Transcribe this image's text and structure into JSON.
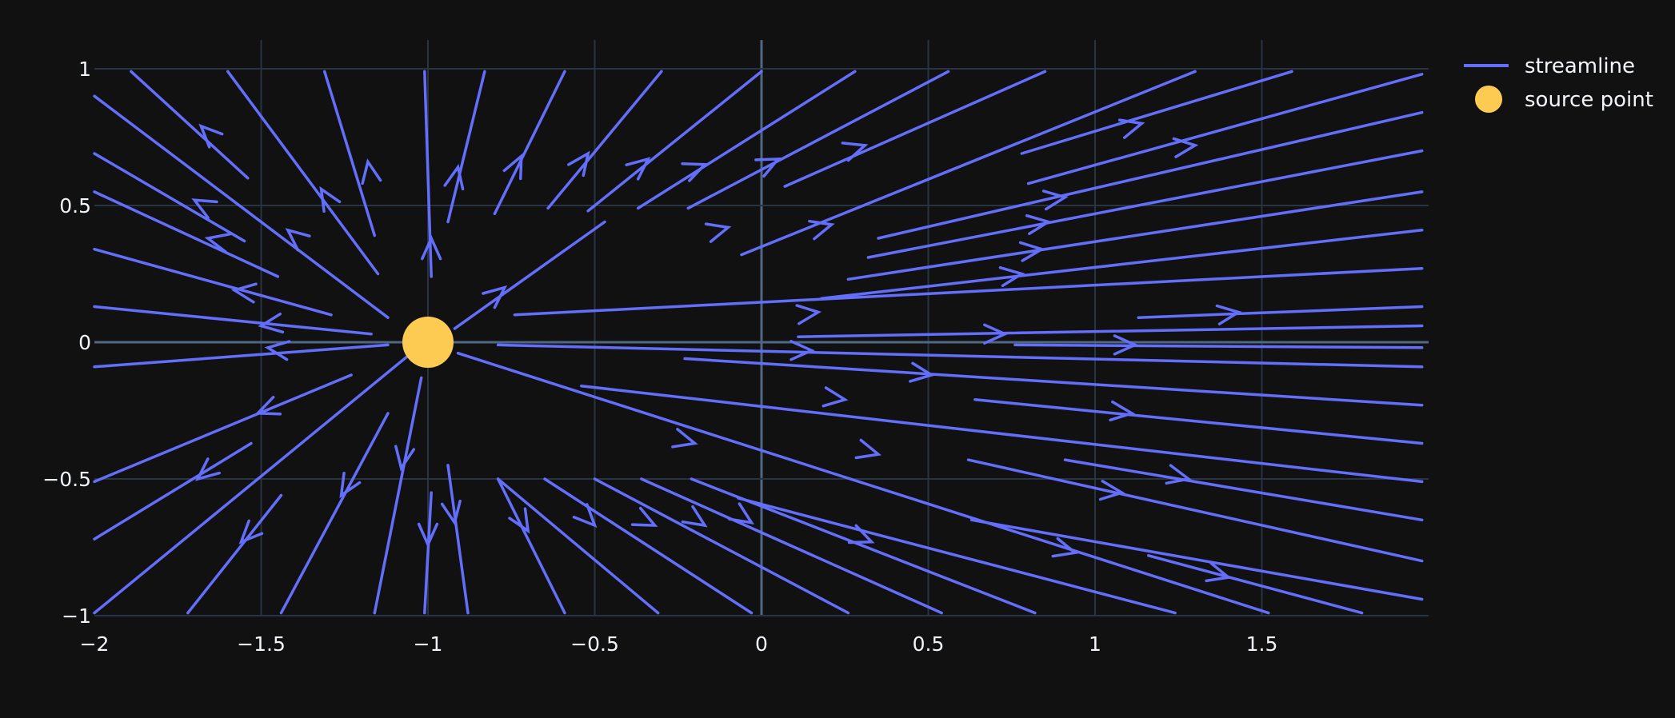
{
  "colors": {
    "background": "#111111",
    "grid": "#283442",
    "zeroline": "#506784",
    "streamline": "#636efa",
    "source": "#fecb52",
    "text": "#f2f5fa"
  },
  "chart_data": {
    "type": "streamline",
    "title": "",
    "xlabel": "",
    "ylabel": "",
    "xlim": [
      -2,
      2
    ],
    "ylim": [
      -1,
      1
    ],
    "xticks": [
      -2,
      -1.5,
      -1,
      -0.5,
      0,
      0.5,
      1,
      1.5
    ],
    "yticks": [
      -1,
      -0.5,
      0,
      0.5,
      1
    ],
    "x_tick_labels": [
      "−2",
      "−1.5",
      "−1",
      "−0.5",
      "0",
      "0.5",
      "1",
      "1.5"
    ],
    "y_tick_labels": [
      "−1",
      "−0.5",
      "0",
      "0.5",
      "1"
    ],
    "grid": true,
    "legend": {
      "position": "top-right",
      "entries": [
        {
          "name": "streamline",
          "marker": "line"
        },
        {
          "name": "source point",
          "marker": "circle"
        }
      ]
    },
    "source_point": {
      "x": -1,
      "y": 0
    },
    "streamlines": [
      [
        [
          -1.89,
          0.99
        ],
        [
          -1.54,
          0.6
        ]
      ],
      [
        [
          -1.6,
          0.99
        ],
        [
          -1.15,
          0.25
        ]
      ],
      [
        [
          -1.31,
          0.99
        ],
        [
          -1.16,
          0.39
        ]
      ],
      [
        [
          -1.01,
          0.99
        ],
        [
          -0.99,
          0.24
        ]
      ],
      [
        [
          -0.83,
          0.99
        ],
        [
          -0.94,
          0.44
        ]
      ],
      [
        [
          -0.59,
          0.99
        ],
        [
          -0.8,
          0.47
        ]
      ],
      [
        [
          -0.3,
          0.99
        ],
        [
          -0.64,
          0.49
        ]
      ],
      [
        [
          -0.0,
          0.99
        ],
        [
          -0.52,
          0.48
        ]
      ],
      [
        [
          0.28,
          0.99
        ],
        [
          -0.37,
          0.49
        ]
      ],
      [
        [
          0.56,
          0.99
        ],
        [
          -0.22,
          0.49
        ]
      ],
      [
        [
          0.85,
          0.99
        ],
        [
          0.07,
          0.57
        ]
      ],
      [
        [
          1.3,
          0.99
        ],
        [
          -0.06,
          0.32
        ]
      ],
      [
        [
          1.59,
          0.99
        ],
        [
          0.78,
          0.69
        ]
      ],
      [
        [
          1.98,
          0.98
        ],
        [
          0.8,
          0.58
        ]
      ],
      [
        [
          1.98,
          0.84
        ],
        [
          0.35,
          0.38
        ]
      ],
      [
        [
          1.98,
          0.7
        ],
        [
          0.32,
          0.31
        ]
      ],
      [
        [
          1.98,
          0.55
        ],
        [
          0.26,
          0.23
        ]
      ],
      [
        [
          1.98,
          0.41
        ],
        [
          0.18,
          0.16
        ]
      ],
      [
        [
          1.98,
          0.27
        ],
        [
          -0.74,
          0.1
        ]
      ],
      [
        [
          1.98,
          0.13
        ],
        [
          1.13,
          0.09
        ]
      ],
      [
        [
          1.98,
          0.06
        ],
        [
          0.11,
          0.02
        ]
      ],
      [
        [
          1.98,
          -0.02
        ],
        [
          0.76,
          -0.01
        ]
      ],
      [
        [
          1.98,
          -0.09
        ],
        [
          -0.79,
          -0.01
        ]
      ],
      [
        [
          1.98,
          -0.23
        ],
        [
          -0.23,
          -0.06
        ]
      ],
      [
        [
          1.98,
          -0.37
        ],
        [
          0.64,
          -0.21
        ]
      ],
      [
        [
          1.98,
          -0.51
        ],
        [
          -0.54,
          -0.16
        ]
      ],
      [
        [
          1.98,
          -0.65
        ],
        [
          0.91,
          -0.43
        ]
      ],
      [
        [
          1.98,
          -0.8
        ],
        [
          0.62,
          -0.43
        ]
      ],
      [
        [
          1.98,
          -0.94
        ],
        [
          0.63,
          -0.65
        ]
      ],
      [
        [
          1.8,
          -0.99
        ],
        [
          1.16,
          -0.78
        ]
      ],
      [
        [
          1.52,
          -0.99
        ],
        [
          -0.91,
          -0.04
        ]
      ],
      [
        [
          1.24,
          -0.99
        ],
        [
          -0.07,
          -0.57
        ]
      ],
      [
        [
          0.82,
          -0.99
        ],
        [
          -0.21,
          -0.5
        ]
      ],
      [
        [
          0.54,
          -0.99
        ],
        [
          -0.36,
          -0.5
        ]
      ],
      [
        [
          0.26,
          -0.99
        ],
        [
          -0.5,
          -0.5
        ]
      ],
      [
        [
          -0.03,
          -0.99
        ],
        [
          -0.65,
          -0.5
        ]
      ],
      [
        [
          -0.31,
          -0.99
        ],
        [
          -0.79,
          -0.5
        ]
      ],
      [
        [
          -0.59,
          -0.99
        ],
        [
          -0.79,
          -0.5
        ]
      ],
      [
        [
          -0.88,
          -0.99
        ],
        [
          -0.94,
          -0.45
        ]
      ],
      [
        [
          -1.01,
          -0.99
        ],
        [
          -0.99,
          -0.55
        ]
      ],
      [
        [
          -1.16,
          -0.99
        ],
        [
          -1.02,
          -0.13
        ]
      ],
      [
        [
          -1.44,
          -0.99
        ],
        [
          -1.12,
          -0.26
        ]
      ],
      [
        [
          -1.72,
          -0.99
        ],
        [
          -1.44,
          -0.56
        ]
      ],
      [
        [
          -2.0,
          -0.99
        ],
        [
          -1.06,
          -0.05
        ]
      ],
      [
        [
          -2.0,
          -0.72
        ],
        [
          -1.53,
          -0.37
        ]
      ],
      [
        [
          -2.0,
          -0.51
        ],
        [
          -1.23,
          -0.12
        ]
      ],
      [
        [
          -2.0,
          -0.09
        ],
        [
          -1.12,
          -0.01
        ]
      ],
      [
        [
          -2.0,
          0.13
        ],
        [
          -1.17,
          0.03
        ]
      ],
      [
        [
          -2.0,
          0.34
        ],
        [
          -1.29,
          0.1
        ]
      ],
      [
        [
          -2.0,
          0.55
        ],
        [
          -1.45,
          0.24
        ]
      ],
      [
        [
          -2.0,
          0.69
        ],
        [
          -1.55,
          0.37
        ]
      ],
      [
        [
          -2.0,
          0.9
        ],
        [
          -1.12,
          0.09
        ]
      ],
      [
        [
          -0.47,
          0.44
        ],
        [
          -0.92,
          0.05
        ]
      ]
    ],
    "arrows": [
      [
        -1.63,
        0.73,
        -1.68,
        0.79
      ],
      [
        -1.17,
        0.59,
        -1.18,
        0.66
      ],
      [
        -1.29,
        0.5,
        -1.32,
        0.56
      ],
      [
        -1.64,
        0.48,
        -1.7,
        0.52
      ],
      [
        -1.38,
        0.37,
        -1.42,
        0.41
      ],
      [
        -1.59,
        0.36,
        -1.66,
        0.38
      ],
      [
        -1.52,
        0.18,
        -1.58,
        0.19
      ],
      [
        -1.44,
        0.07,
        -1.5,
        0.06
      ],
      [
        -1.42,
        -0.03,
        -1.48,
        -0.02
      ],
      [
        -1.45,
        -0.23,
        -1.51,
        -0.26
      ],
      [
        -1.65,
        -0.46,
        -1.69,
        -0.5
      ],
      [
        -1.52,
        -0.68,
        -1.56,
        -0.73
      ],
      [
        -1.23,
        -0.5,
        -1.26,
        -0.56
      ],
      [
        -1.07,
        -0.39,
        -1.08,
        -0.46
      ],
      [
        -1.0,
        -0.67,
        -1.0,
        -0.74
      ],
      [
        -0.93,
        -0.59,
        -0.92,
        -0.66
      ],
      [
        -0.99,
        0.32,
        -0.99,
        0.38
      ],
      [
        -0.92,
        0.58,
        -0.91,
        0.64
      ],
      [
        -0.74,
        0.63,
        -0.72,
        0.68
      ],
      [
        -0.55,
        0.64,
        -0.52,
        0.69
      ],
      [
        -0.38,
        0.63,
        -0.34,
        0.67
      ],
      [
        -0.21,
        0.63,
        -0.17,
        0.65
      ],
      [
        -0.0,
        0.64,
        0.05,
        0.67
      ],
      [
        0.26,
        0.7,
        0.31,
        0.72
      ],
      [
        -0.16,
        0.4,
        -0.1,
        0.42
      ],
      [
        0.15,
        0.41,
        0.21,
        0.43
      ],
      [
        -0.81,
        0.16,
        -0.77,
        0.2
      ],
      [
        0.1,
        0.1,
        0.17,
        0.11
      ],
      [
        0.67,
        0.03,
        0.73,
        0.03
      ],
      [
        1.08,
        0.78,
        1.14,
        0.8
      ],
      [
        1.23,
        0.71,
        1.3,
        0.72
      ],
      [
        0.85,
        0.52,
        0.91,
        0.53
      ],
      [
        0.8,
        0.43,
        0.86,
        0.44
      ],
      [
        0.77,
        0.33,
        0.84,
        0.34
      ],
      [
        0.72,
        0.24,
        0.78,
        0.25
      ],
      [
        1.37,
        0.1,
        1.43,
        0.11
      ],
      [
        1.06,
        -0.01,
        1.12,
        -0.01
      ],
      [
        0.08,
        -0.03,
        0.15,
        -0.03
      ],
      [
        0.45,
        -0.11,
        0.51,
        -0.12
      ],
      [
        0.19,
        -0.2,
        0.25,
        -0.21
      ],
      [
        -0.26,
        -0.35,
        -0.2,
        -0.37
      ],
      [
        0.29,
        -0.39,
        0.35,
        -0.41
      ],
      [
        1.04,
        -0.25,
        1.11,
        -0.26
      ],
      [
        1.21,
        -0.48,
        1.28,
        -0.5
      ],
      [
        1.01,
        -0.54,
        1.08,
        -0.55
      ],
      [
        0.88,
        -0.75,
        0.94,
        -0.77
      ],
      [
        0.27,
        -0.7,
        0.33,
        -0.73
      ],
      [
        1.34,
        -0.84,
        1.4,
        -0.86
      ],
      [
        -0.08,
        -0.62,
        -0.03,
        -0.66
      ],
      [
        -0.22,
        -0.63,
        -0.17,
        -0.67
      ],
      [
        -0.37,
        -0.64,
        -0.32,
        -0.67
      ],
      [
        -0.54,
        -0.62,
        -0.5,
        -0.67
      ],
      [
        -0.73,
        -0.63,
        -0.7,
        -0.69
      ]
    ]
  }
}
